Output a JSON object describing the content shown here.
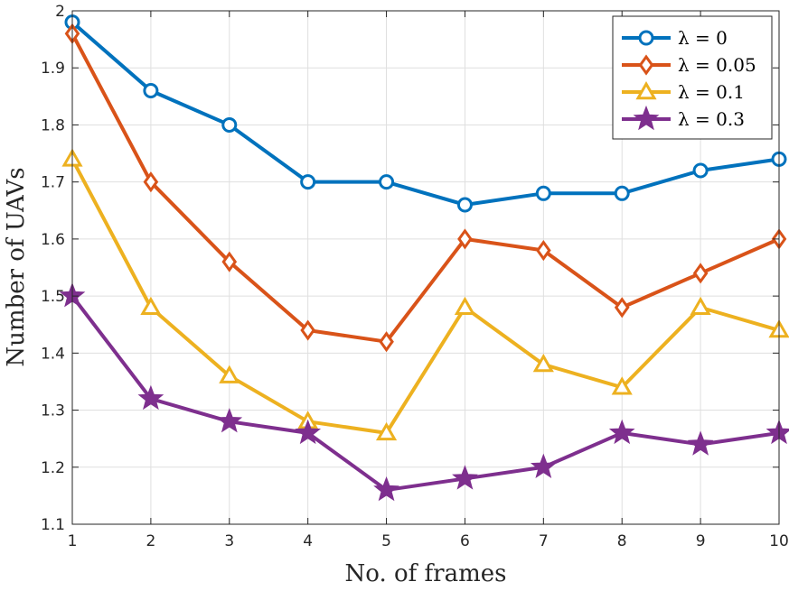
{
  "chart_data": {
    "type": "line",
    "xlabel": "No. of frames",
    "ylabel": "Number of UAVs",
    "x": [
      1,
      2,
      3,
      4,
      5,
      6,
      7,
      8,
      9,
      10
    ],
    "xlim": [
      1,
      10
    ],
    "ylim": [
      1.1,
      2
    ],
    "xticks": [
      "1",
      "2",
      "3",
      "4",
      "5",
      "6",
      "7",
      "8",
      "9",
      "10"
    ],
    "yticks": [
      "1.1",
      "1.2",
      "1.3",
      "1.4",
      "1.5",
      "1.6",
      "1.7",
      "1.8",
      "1.9",
      "2"
    ],
    "grid": true,
    "legend_position": "top-right",
    "series": [
      {
        "name": "λ = 0",
        "color": "#0072BD",
        "marker": "circle",
        "values": [
          1.98,
          1.86,
          1.8,
          1.7,
          1.7,
          1.66,
          1.68,
          1.68,
          1.72,
          1.74
        ]
      },
      {
        "name": "λ = 0.05",
        "color": "#D95319",
        "marker": "diamond",
        "values": [
          1.96,
          1.7,
          1.56,
          1.44,
          1.42,
          1.6,
          1.58,
          1.48,
          1.54,
          1.6
        ]
      },
      {
        "name": "λ = 0.1",
        "color": "#EDB120",
        "marker": "triangle",
        "values": [
          1.74,
          1.48,
          1.36,
          1.28,
          1.26,
          1.48,
          1.38,
          1.34,
          1.48,
          1.44
        ]
      },
      {
        "name": "λ = 0.3",
        "color": "#7E2F8E",
        "marker": "star",
        "values": [
          1.5,
          1.32,
          1.28,
          1.26,
          1.16,
          1.18,
          1.2,
          1.26,
          1.24,
          1.26
        ]
      }
    ]
  }
}
